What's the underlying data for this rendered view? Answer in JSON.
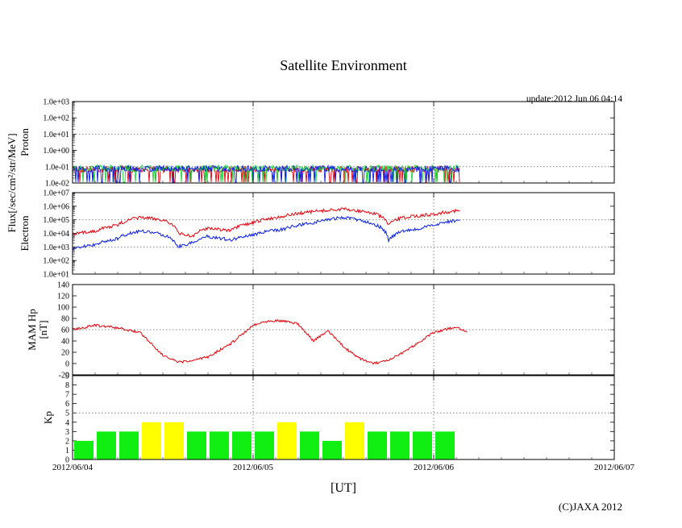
{
  "title": "Satellite Environment",
  "update_label": "update:2012 Jun 06 04:14",
  "x_axis": {
    "label": "[UT]",
    "tick_labels": [
      "2012/06/04",
      "2012/06/05",
      "2012/06/06",
      "2012/06/07"
    ],
    "range_hours": [
      0,
      72
    ]
  },
  "shared_ylabel": "Flux[/sec/cm²/str/MeV]",
  "copyright": "(C)JAXA 2012",
  "colors": {
    "red": "#e8000b",
    "blue": "#0a1ee6",
    "green": "#1fd43c",
    "kp_green": "#11ee11",
    "kp_yellow": "#ffff00"
  },
  "chart_data": [
    {
      "type": "line",
      "name": "proton",
      "ylabel": "Proton",
      "scale": "log",
      "ylim_exp": [
        -2,
        3
      ],
      "y_tick_labels": [
        "1.0e-02",
        "1.0e-01",
        "1.0e+00",
        "1.0e+01",
        "1.0e+02",
        "1.0e+03"
      ],
      "data_end_hours": 51.5,
      "series": [
        {
          "color": "red",
          "level": 0.07
        },
        {
          "color": "green",
          "level": 0.08
        },
        {
          "color": "blue",
          "level": 0.075
        }
      ]
    },
    {
      "type": "line",
      "name": "electron",
      "ylabel": "Electron",
      "scale": "log",
      "ylim_exp": [
        1,
        7
      ],
      "y_tick_labels": [
        "1.0e+01",
        "1.0e+02",
        "1.0e+03",
        "1.0e+04",
        "1.0e+05",
        "1.0e+06",
        "1.0e+07"
      ],
      "series": [
        {
          "color": "red",
          "x": [
            0,
            3,
            6,
            9,
            12,
            14,
            16,
            18,
            21,
            24,
            28,
            32,
            36,
            40,
            42,
            44,
            46,
            48,
            51.5
          ],
          "y": [
            8000,
            15000,
            40000,
            150000,
            100000,
            10000,
            6000,
            25000,
            15000,
            60000,
            180000,
            400000,
            600000,
            300000,
            40000,
            150000,
            200000,
            250000,
            500000
          ]
        },
        {
          "color": "blue",
          "x": [
            0,
            3,
            6,
            9,
            12,
            14,
            16,
            18,
            21,
            24,
            28,
            32,
            36,
            40,
            42,
            44,
            46,
            48,
            51.5
          ],
          "y": [
            600,
            1500,
            4000,
            15000,
            8000,
            1000,
            2000,
            6000,
            3000,
            8000,
            20000,
            60000,
            150000,
            50000,
            2500,
            15000,
            20000,
            40000,
            100000
          ]
        }
      ]
    },
    {
      "type": "line",
      "name": "mam_hp",
      "ylabel": "MAM Hp",
      "ylabel2": "[nT]",
      "scale": "linear",
      "ylim": [
        -20,
        140
      ],
      "y_tick_labels": [
        "-20",
        "0",
        "20",
        "40",
        "60",
        "80",
        "100",
        "120",
        "140"
      ],
      "series": [
        {
          "color": "red",
          "x": [
            0,
            3,
            6,
            9,
            12,
            14,
            16,
            18,
            21,
            24,
            26,
            28,
            30,
            32,
            34,
            36,
            38,
            40,
            42,
            44,
            48,
            51,
            52.5
          ],
          "y": [
            60,
            68,
            63,
            55,
            15,
            2,
            5,
            12,
            35,
            68,
            76,
            76,
            70,
            40,
            58,
            30,
            10,
            0,
            5,
            20,
            55,
            65,
            56
          ]
        }
      ]
    },
    {
      "type": "bar",
      "name": "kp",
      "ylabel": "Kp",
      "ylim": [
        0,
        9
      ],
      "y_tick_labels": [
        "0",
        "1",
        "2",
        "3",
        "4",
        "5",
        "6",
        "7",
        "8",
        "9"
      ],
      "threshold": 5,
      "bar_width_hours": 3,
      "values": [
        2,
        3,
        3,
        4,
        4,
        3,
        3,
        3,
        3,
        4,
        3,
        2,
        4,
        3,
        3,
        3,
        3
      ]
    }
  ]
}
